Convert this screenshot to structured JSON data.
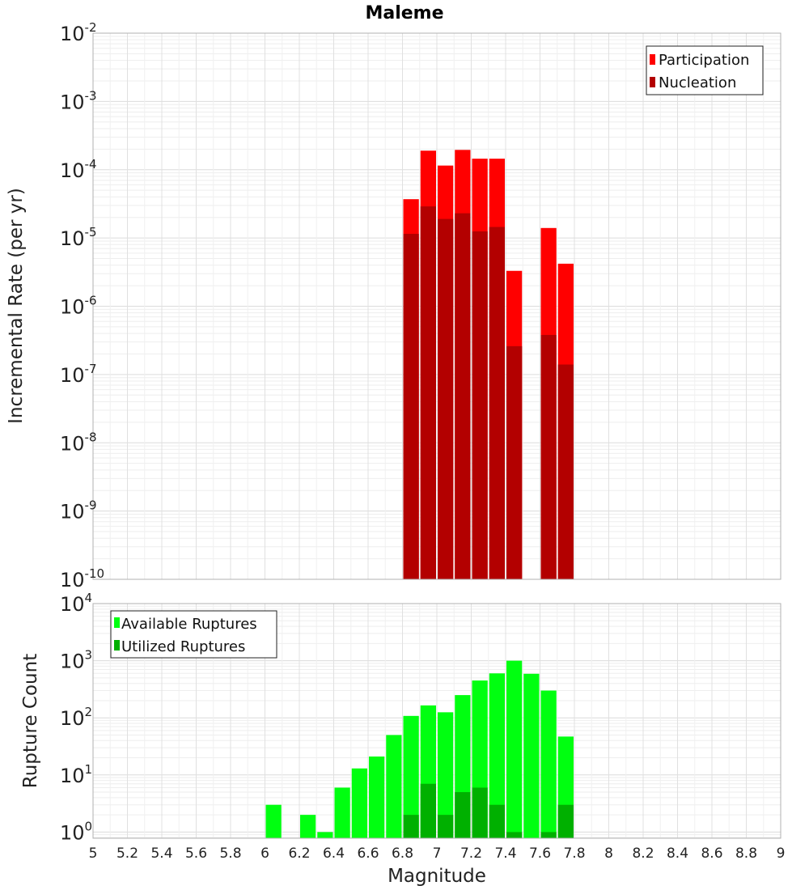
{
  "chart_data": [
    {
      "type": "bar",
      "title": "Maleme",
      "ylabel": "Incremental Rate (per yr)",
      "xlabel": "",
      "y_scale": "log",
      "ylim": [
        1e-10,
        0.01
      ],
      "xlim": [
        5,
        9
      ],
      "grid": true,
      "legend_position": "top-right",
      "bar_width": 0.1,
      "y_ticks": [
        {
          "base": "10",
          "exp": "-10"
        },
        {
          "base": "10",
          "exp": "-9"
        },
        {
          "base": "10",
          "exp": "-8"
        },
        {
          "base": "10",
          "exp": "-7"
        },
        {
          "base": "10",
          "exp": "-6"
        },
        {
          "base": "10",
          "exp": "-5"
        },
        {
          "base": "10",
          "exp": "-4"
        },
        {
          "base": "10",
          "exp": "-3"
        },
        {
          "base": "10",
          "exp": "-2"
        }
      ],
      "series": [
        {
          "name": "Participation",
          "color": "#ff0000",
          "x": [
            6.85,
            6.95,
            7.05,
            7.15,
            7.25,
            7.35,
            7.45,
            7.65,
            7.75
          ],
          "values": [
            3.7e-05,
            0.00019,
            0.000115,
            0.000195,
            0.000145,
            0.000145,
            3.3e-06,
            1.4e-05,
            4.2e-06
          ]
        },
        {
          "name": "Nucleation",
          "color": "#b30000",
          "x": [
            6.85,
            6.95,
            7.05,
            7.15,
            7.25,
            7.35,
            7.45,
            7.65,
            7.75
          ],
          "values": [
            1.15e-05,
            2.9e-05,
            1.9e-05,
            2.3e-05,
            1.25e-05,
            1.45e-05,
            2.6e-07,
            3.8e-07,
            1.4e-07
          ]
        }
      ]
    },
    {
      "type": "bar",
      "title": "",
      "ylabel": "Rupture Count",
      "xlabel": "Magnitude",
      "y_scale": "log",
      "ylim": [
        0.78,
        10000.0
      ],
      "xlim": [
        5,
        9
      ],
      "grid": true,
      "legend_position": "top-left",
      "bar_width": 0.1,
      "x_ticks": [
        "5",
        "5.2",
        "5.4",
        "5.6",
        "5.8",
        "6",
        "6.2",
        "6.4",
        "6.6",
        "6.8",
        "7",
        "7.2",
        "7.4",
        "7.6",
        "7.8",
        "8",
        "8.2",
        "8.4",
        "8.6",
        "8.8",
        "9"
      ],
      "y_ticks": [
        {
          "base": "10",
          "exp": "0"
        },
        {
          "base": "10",
          "exp": "1"
        },
        {
          "base": "10",
          "exp": "2"
        },
        {
          "base": "10",
          "exp": "3"
        },
        {
          "base": "10",
          "exp": "4"
        }
      ],
      "series": [
        {
          "name": "Available Ruptures",
          "color": "#00ff10",
          "x": [
            6.05,
            6.25,
            6.35,
            6.45,
            6.55,
            6.65,
            6.75,
            6.85,
            6.95,
            7.05,
            7.15,
            7.25,
            7.35,
            7.45,
            7.55,
            7.65,
            7.75
          ],
          "values": [
            3,
            2,
            1,
            6,
            13,
            21,
            50,
            108,
            165,
            125,
            250,
            450,
            600,
            1000,
            590,
            300,
            47
          ]
        },
        {
          "name": "Utilized Ruptures",
          "color": "#00b000",
          "x": [
            6.85,
            6.95,
            7.05,
            7.15,
            7.25,
            7.35,
            7.45,
            7.65,
            7.75
          ],
          "values": [
            2,
            7,
            2,
            5,
            6,
            3,
            1,
            1,
            3
          ]
        }
      ]
    }
  ]
}
